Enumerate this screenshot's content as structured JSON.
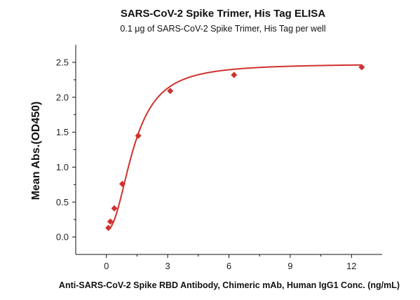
{
  "chart_data": {
    "type": "scatter",
    "title": "SARS-CoV-2 Spike Trimer, His Tag  ELISA",
    "subtitle": "0.1 μg of SARS-CoV-2 Spike Trimer, His Tag  per well",
    "xlabel": "Anti-SARS-CoV-2 Spike RBD Antibody, Chimeric mAb, Human IgG1 Conc. (ng/mL)",
    "ylabel": "Mean Abs.(OD450)",
    "xlim": [
      -1.5,
      13.5
    ],
    "ylim": [
      -0.25,
      2.75
    ],
    "x_ticks": [
      0,
      3,
      6,
      9,
      12
    ],
    "x_tick_labels": [
      "0",
      "3",
      "6",
      "9",
      "12"
    ],
    "y_ticks": [
      0.0,
      0.5,
      1.0,
      1.5,
      2.0,
      2.5
    ],
    "y_tick_labels": [
      "0.0",
      "0.5",
      "1.0",
      "1.5",
      "2.0",
      "2.5"
    ],
    "grid": false,
    "marker": "diamond",
    "color": "#d0312d",
    "series": [
      {
        "x": [
          0.098,
          0.195,
          0.39,
          0.78,
          1.56,
          3.125,
          6.25,
          12.5
        ],
        "y": [
          0.13,
          0.22,
          0.41,
          0.76,
          1.45,
          2.09,
          2.32,
          2.43
        ]
      }
    ],
    "fit_curve": {
      "type": "4PL",
      "bottom": 0.1,
      "top": 2.48,
      "ec50": 1.35,
      "hill": 2.2
    }
  }
}
